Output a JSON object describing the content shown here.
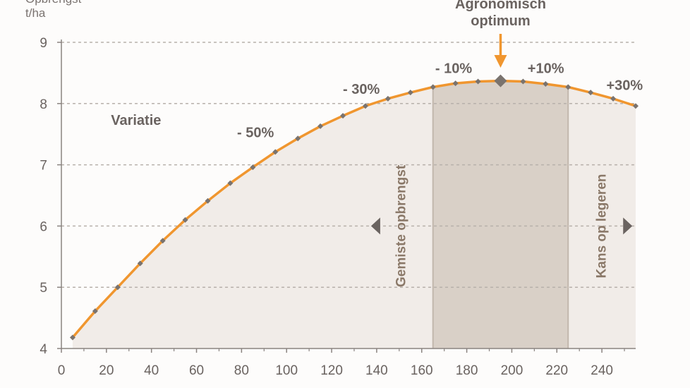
{
  "chart_data": {
    "type": "line",
    "ylabel_lines": [
      "Opbrengst",
      "t/ha"
    ],
    "xlim": [
      0,
      255
    ],
    "ylim": [
      4,
      9
    ],
    "xticks": [
      0,
      20,
      40,
      60,
      80,
      100,
      120,
      140,
      160,
      180,
      200,
      220,
      240
    ],
    "yticks": [
      4,
      5,
      6,
      7,
      8,
      9
    ],
    "grid": "horizontal-dashed",
    "series": [
      {
        "color": "#f0962f",
        "marker_color": "#7a736e",
        "x": [
          5,
          15,
          25,
          35,
          45,
          55,
          65,
          75,
          85,
          95,
          105,
          115,
          125,
          135,
          145,
          155,
          165,
          175,
          185,
          195,
          205,
          215,
          225,
          235,
          245,
          255
        ],
        "y": [
          4.18,
          4.61,
          5.0,
          5.39,
          5.76,
          6.1,
          6.41,
          6.7,
          6.96,
          7.21,
          7.43,
          7.63,
          7.8,
          7.96,
          8.08,
          8.18,
          8.27,
          8.33,
          8.36,
          8.37,
          8.36,
          8.32,
          8.27,
          8.18,
          8.08,
          7.96
        ]
      }
    ],
    "shaded_region": {
      "x": [
        165,
        225
      ],
      "color": "#d9d0c7"
    },
    "area_fill_color": "#f1ece8",
    "optimum": {
      "x": 195,
      "y": 8.37,
      "label_lines": [
        "Agronomisch",
        "optimum"
      ],
      "arrow_color": "#f0962f"
    },
    "annotations": [
      {
        "text": "Variatie",
        "x": 22,
        "y": 7.65
      },
      {
        "text": "- 50%",
        "x": 78,
        "y": 7.45
      },
      {
        "text": "- 30%",
        "x": 125,
        "y": 8.16
      },
      {
        "text": "- 10%",
        "x": 166,
        "y": 8.5
      },
      {
        "text": "+10%",
        "x": 207,
        "y": 8.5
      },
      {
        "text": "+30%",
        "x": 242,
        "y": 8.22
      }
    ],
    "vertical_labels": [
      {
        "text": "Gemiste opbrengst",
        "x": 151,
        "y": 6.0
      },
      {
        "text": "Kans op legeren",
        "x": 240,
        "y": 6.0
      }
    ],
    "side_arrows": [
      {
        "direction": "left",
        "x": 140,
        "y": 6.0
      },
      {
        "direction": "right",
        "x": 251,
        "y": 6.0
      }
    ]
  }
}
